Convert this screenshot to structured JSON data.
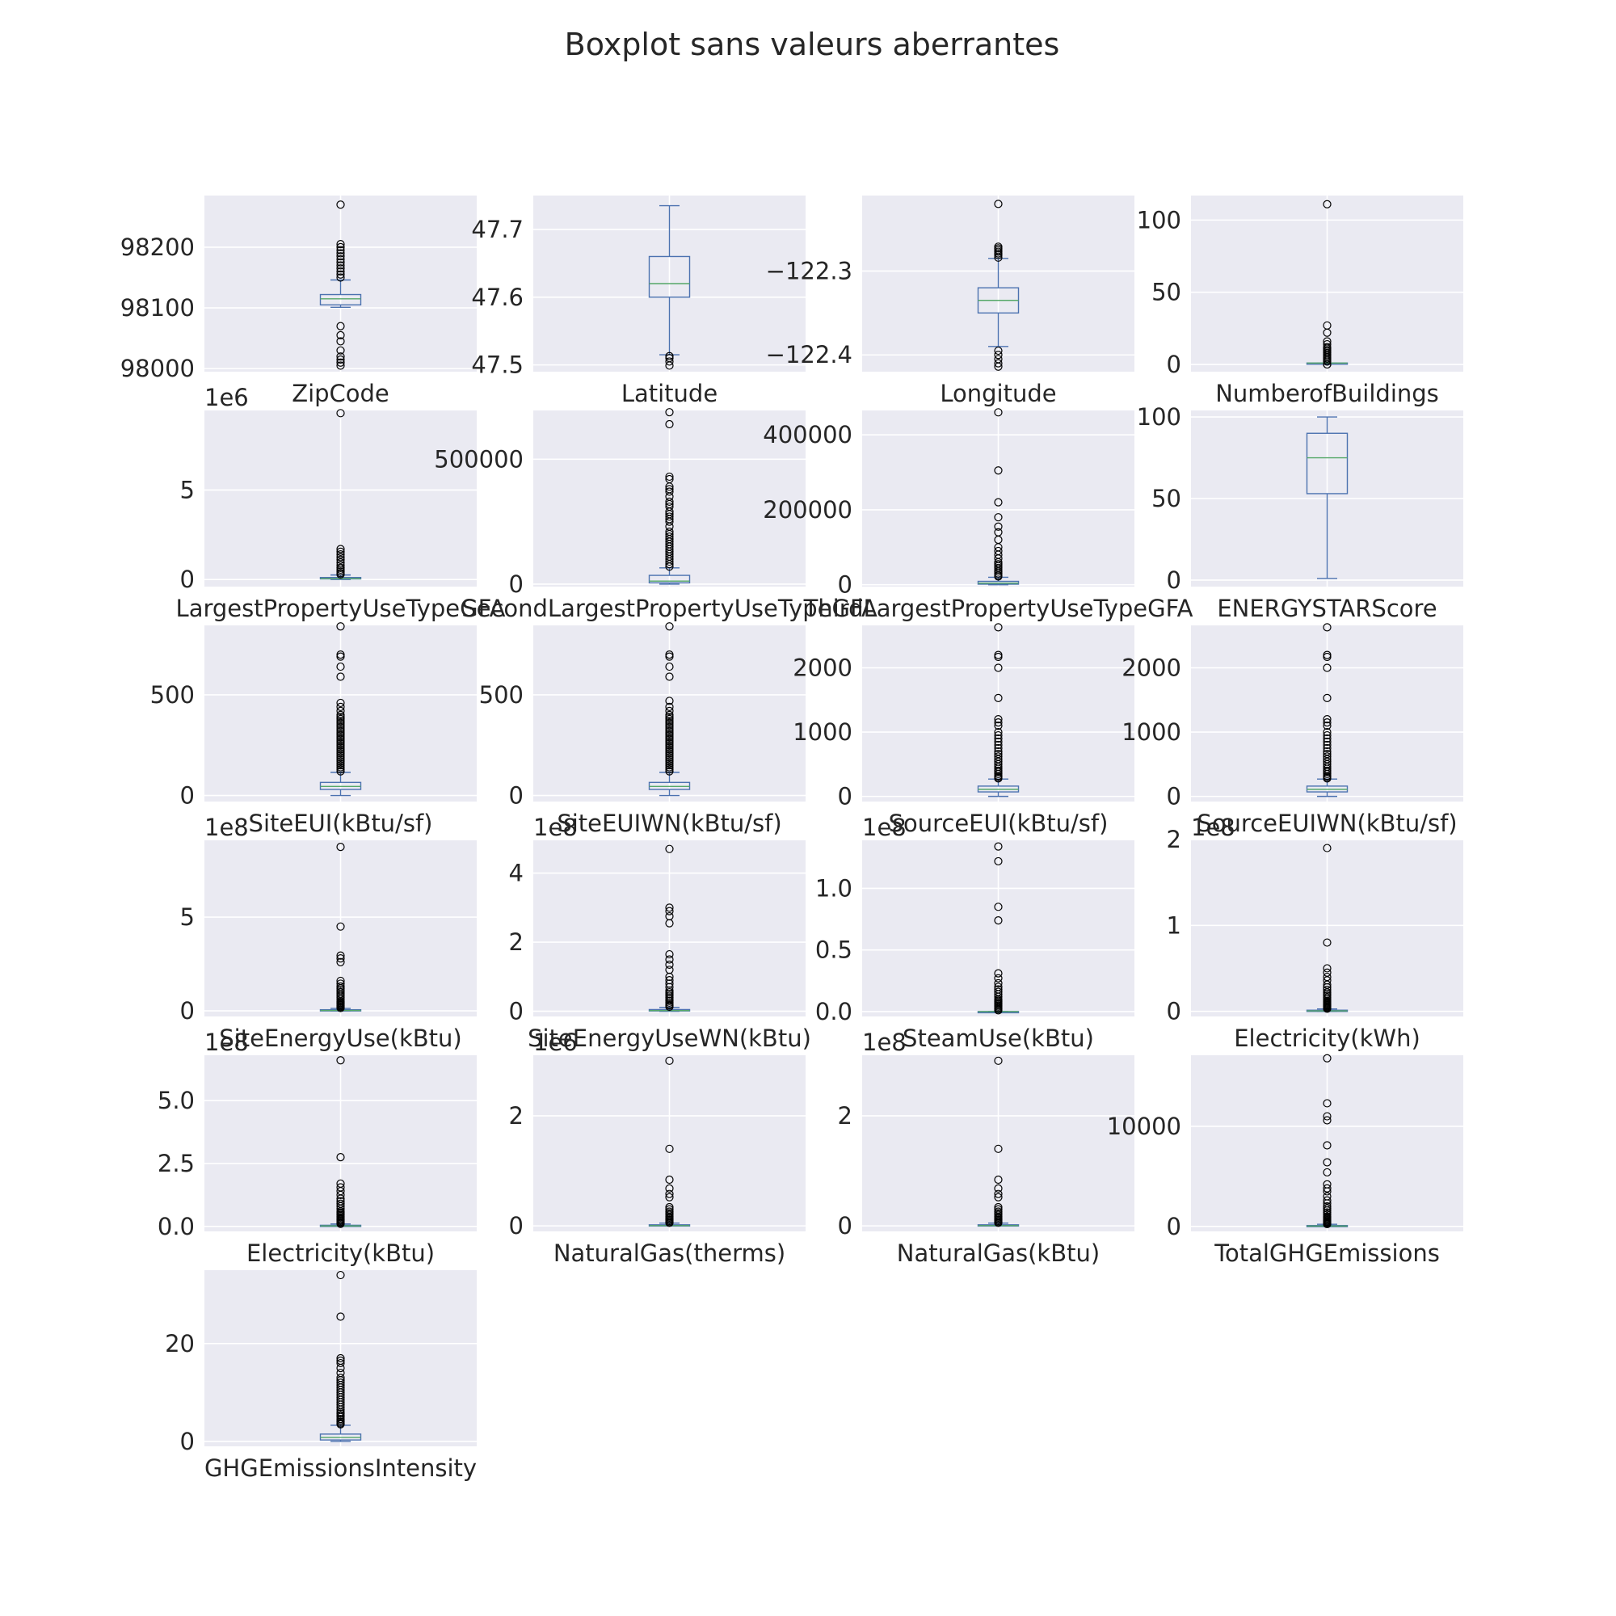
{
  "title": "Boxplot sans valeurs aberrantes",
  "colors": {
    "panel_bg": "#eaeaf2",
    "grid": "#ffffff",
    "box": "#4c72b0",
    "median": "#55a868",
    "flier": "#000000",
    "text": "#262626"
  },
  "chart_data": [
    {
      "type": "boxplot",
      "category": "ZipCode",
      "ylim": [
        97995,
        98285
      ],
      "yticks": [
        98000,
        98100,
        98200
      ],
      "tick_labels": [
        "98000",
        "98100",
        "98200"
      ],
      "offset": "",
      "stats": {
        "whislo": 98101,
        "q1": 98105,
        "median": 98115,
        "q3": 98122,
        "whishi": 98146
      },
      "fliers": [
        98005,
        98010,
        98015,
        98020,
        98030,
        98045,
        98055,
        98070,
        98150,
        98155,
        98160,
        98165,
        98170,
        98175,
        98180,
        98185,
        98190,
        98195,
        98200,
        98205,
        98270
      ]
    },
    {
      "type": "boxplot",
      "category": "Latitude",
      "ylim": [
        47.49,
        47.75
      ],
      "yticks": [
        47.5,
        47.6,
        47.7
      ],
      "tick_labels": [
        "47.5",
        "47.6",
        "47.7"
      ],
      "offset": "",
      "stats": {
        "whislo": 47.515,
        "q1": 47.6,
        "median": 47.62,
        "q3": 47.66,
        "whishi": 47.735
      },
      "fliers": [
        47.499,
        47.505,
        47.51,
        47.513
      ]
    },
    {
      "type": "boxplot",
      "category": "Longitude",
      "ylim": [
        -122.42,
        -122.21
      ],
      "yticks": [
        -122.4,
        -122.3
      ],
      "tick_labels": [
        "−122.4",
        "−122.3"
      ],
      "offset": "",
      "stats": {
        "whislo": -122.39,
        "q1": -122.35,
        "median": -122.335,
        "q3": -122.32,
        "whishi": -122.285
      },
      "fliers": [
        -122.414,
        -122.41,
        -122.405,
        -122.4,
        -122.395,
        -122.284,
        -122.281,
        -122.279,
        -122.277,
        -122.275,
        -122.273,
        -122.271,
        -122.22
      ]
    },
    {
      "type": "boxplot",
      "category": "NumberofBuildings",
      "ylim": [
        -5,
        117
      ],
      "yticks": [
        0,
        50,
        100
      ],
      "tick_labels": [
        "0",
        "50",
        "100"
      ],
      "offset": "",
      "stats": {
        "whislo": 1,
        "q1": 1,
        "median": 1,
        "q3": 1,
        "whishi": 1
      },
      "fliers": [
        0,
        0,
        2,
        3,
        4,
        5,
        6,
        7,
        8,
        9,
        10,
        11,
        12,
        14,
        16,
        22,
        27,
        111
      ]
    },
    {
      "type": "boxplot",
      "category": "LargestPropertyUseTypeGFA",
      "ylim": [
        -0.4,
        9.45
      ],
      "yticks": [
        0,
        5
      ],
      "tick_labels": [
        "0",
        "5"
      ],
      "offset": "1e6",
      "stats": {
        "whislo": 0.0,
        "q1": 0.03,
        "median": 0.05,
        "q3": 0.11,
        "whishi": 0.25
      },
      "fliers": [
        0.28,
        0.35,
        0.45,
        0.55,
        0.65,
        0.8,
        0.95,
        1.1,
        1.25,
        1.4,
        1.55,
        1.7,
        9.3
      ]
    },
    {
      "type": "boxplot",
      "category": "SecondLargestPropertyUseTypeGFA",
      "ylim": [
        -10000,
        695000
      ],
      "yticks": [
        0,
        500000
      ],
      "tick_labels": [
        "0",
        "500000"
      ],
      "offset": "",
      "stats": {
        "whislo": 0,
        "q1": 5000,
        "median": 12000,
        "q3": 35000,
        "whishi": 65000
      },
      "fliers": [
        70000,
        80000,
        90000,
        100000,
        110000,
        120000,
        130000,
        140000,
        150000,
        160000,
        170000,
        180000,
        190000,
        200000,
        210000,
        230000,
        250000,
        260000,
        270000,
        280000,
        290000,
        310000,
        320000,
        330000,
        350000,
        370000,
        380000,
        390000,
        420000,
        430000,
        640000,
        688000
      ]
    },
    {
      "type": "boxplot",
      "category": "ThirdLargestPropertyUseTypeGFA",
      "ylim": [
        -5000,
        465000
      ],
      "yticks": [
        0,
        200000,
        400000
      ],
      "tick_labels": [
        "0",
        "200000",
        "400000"
      ],
      "offset": "",
      "stats": {
        "whislo": 0,
        "q1": 1500,
        "median": 4000,
        "q3": 9000,
        "whishi": 20000
      },
      "fliers": [
        22000,
        25000,
        30000,
        35000,
        40000,
        45000,
        50000,
        55000,
        60000,
        70000,
        80000,
        90000,
        100000,
        120000,
        140000,
        155000,
        180000,
        220000,
        305000,
        460000
      ]
    },
    {
      "type": "boxplot",
      "category": "ENERGYSTARScore",
      "ylim": [
        -4,
        104
      ],
      "yticks": [
        0,
        50,
        100
      ],
      "tick_labels": [
        "0",
        "50",
        "100"
      ],
      "offset": "",
      "stats": {
        "whislo": 1,
        "q1": 53,
        "median": 75,
        "q3": 90,
        "whishi": 100
      },
      "fliers": []
    },
    {
      "type": "boxplot",
      "category": "SiteEUI(kBtu/sf)",
      "ylim": [
        -30,
        845
      ],
      "yticks": [
        0,
        500
      ],
      "tick_labels": [
        "0",
        "500"
      ],
      "offset": "",
      "stats": {
        "whislo": 0,
        "q1": 30,
        "median": 45,
        "q3": 65,
        "whishi": 115
      },
      "fliers": [
        120,
        130,
        140,
        150,
        160,
        170,
        180,
        190,
        200,
        210,
        220,
        230,
        240,
        250,
        260,
        270,
        280,
        290,
        300,
        310,
        320,
        330,
        340,
        350,
        360,
        370,
        380,
        390,
        400,
        420,
        440,
        460,
        590,
        640,
        690,
        700,
        840
      ]
    },
    {
      "type": "boxplot",
      "category": "SiteEUIWN(kBtu/sf)",
      "ylim": [
        -30,
        845
      ],
      "yticks": [
        0,
        500
      ],
      "tick_labels": [
        "0",
        "500"
      ],
      "offset": "",
      "stats": {
        "whislo": 0,
        "q1": 30,
        "median": 45,
        "q3": 65,
        "whishi": 115
      },
      "fliers": [
        120,
        130,
        140,
        150,
        160,
        170,
        180,
        190,
        200,
        210,
        220,
        230,
        240,
        250,
        260,
        270,
        280,
        290,
        300,
        310,
        320,
        330,
        340,
        350,
        360,
        370,
        380,
        390,
        400,
        420,
        440,
        470,
        590,
        640,
        690,
        700,
        840
      ]
    },
    {
      "type": "boxplot",
      "category": "SourceEUI(kBtu/sf)",
      "ylim": [
        -80,
        2660
      ],
      "yticks": [
        0,
        1000,
        2000
      ],
      "tick_labels": [
        "0",
        "1000",
        "2000"
      ],
      "offset": "",
      "stats": {
        "whislo": 0,
        "q1": 70,
        "median": 110,
        "q3": 160,
        "whishi": 270
      },
      "fliers": [
        280,
        300,
        320,
        350,
        380,
        400,
        430,
        460,
        500,
        540,
        580,
        620,
        660,
        700,
        750,
        800,
        850,
        900,
        950,
        1000,
        1100,
        1150,
        1200,
        1530,
        2000,
        2170,
        2200,
        2630
      ]
    },
    {
      "type": "boxplot",
      "category": "SourceEUIWN(kBtu/sf)",
      "ylim": [
        -80,
        2660
      ],
      "yticks": [
        0,
        1000,
        2000
      ],
      "tick_labels": [
        "0",
        "1000",
        "2000"
      ],
      "offset": "",
      "stats": {
        "whislo": 0,
        "q1": 70,
        "median": 110,
        "q3": 160,
        "whishi": 270
      },
      "fliers": [
        280,
        300,
        320,
        350,
        380,
        400,
        430,
        460,
        500,
        540,
        580,
        620,
        660,
        700,
        750,
        800,
        850,
        900,
        950,
        1000,
        1100,
        1150,
        1200,
        1530,
        2000,
        2170,
        2200,
        2630
      ]
    },
    {
      "type": "boxplot",
      "category": "SiteEnergyUse(kBtu)",
      "ylim": [
        -0.3,
        9.1
      ],
      "yticks": [
        0,
        5
      ],
      "tick_labels": [
        "0",
        "5"
      ],
      "offset": "1e8",
      "stats": {
        "whislo": 0,
        "q1": 0.01,
        "median": 0.02,
        "q3": 0.06,
        "whishi": 0.13
      },
      "fliers": [
        0.15,
        0.2,
        0.25,
        0.3,
        0.35,
        0.4,
        0.45,
        0.5,
        0.6,
        0.7,
        0.8,
        0.9,
        1.0,
        1.1,
        1.2,
        1.3,
        1.45,
        1.6,
        2.6,
        2.8,
        2.95,
        4.5,
        8.75
      ]
    },
    {
      "type": "boxplot",
      "category": "SiteEnergyUseWN(kBtu)",
      "ylim": [
        -0.15,
        4.95
      ],
      "yticks": [
        0,
        2,
        4
      ],
      "tick_labels": [
        "0",
        "2",
        "4"
      ],
      "offset": "1e8",
      "stats": {
        "whislo": 0,
        "q1": 0.01,
        "median": 0.02,
        "q3": 0.05,
        "whishi": 0.11
      },
      "fliers": [
        0.13,
        0.17,
        0.2,
        0.25,
        0.3,
        0.35,
        0.4,
        0.45,
        0.5,
        0.55,
        0.6,
        0.7,
        0.8,
        0.9,
        1.0,
        1.2,
        1.35,
        1.5,
        1.65,
        2.55,
        2.75,
        2.9,
        3.0,
        4.7
      ]
    },
    {
      "type": "boxplot",
      "category": "SteamUse(kBtu)",
      "ylim": [
        -0.04,
        1.39
      ],
      "yticks": [
        0.0,
        0.5,
        1.0
      ],
      "tick_labels": [
        "0.0",
        "0.5",
        "1.0"
      ],
      "offset": "1e8",
      "stats": {
        "whislo": 0,
        "q1": 0,
        "median": 0,
        "q3": 0,
        "whishi": 0
      },
      "fliers": [
        0.01,
        0.02,
        0.03,
        0.04,
        0.05,
        0.06,
        0.07,
        0.08,
        0.09,
        0.1,
        0.12,
        0.14,
        0.16,
        0.18,
        0.2,
        0.23,
        0.27,
        0.31,
        0.74,
        0.85,
        1.22,
        1.34
      ]
    },
    {
      "type": "boxplot",
      "category": "Electricity(kWh)",
      "ylim": [
        -0.06,
        1.99
      ],
      "yticks": [
        0,
        1,
        2
      ],
      "tick_labels": [
        "0",
        "1",
        "2"
      ],
      "offset": "1e8",
      "stats": {
        "whislo": 0,
        "q1": 0.002,
        "median": 0.005,
        "q3": 0.013,
        "whishi": 0.028
      },
      "fliers": [
        0.03,
        0.04,
        0.05,
        0.06,
        0.07,
        0.08,
        0.09,
        0.1,
        0.11,
        0.12,
        0.14,
        0.16,
        0.18,
        0.2,
        0.22,
        0.25,
        0.28,
        0.31,
        0.36,
        0.4,
        0.45,
        0.5,
        0.8,
        1.9
      ]
    },
    {
      "type": "boxplot",
      "category": "Electricity(kBtu)",
      "ylim": [
        -0.2,
        6.8
      ],
      "yticks": [
        0.0,
        2.5,
        5.0
      ],
      "tick_labels": [
        "0.0",
        "2.5",
        "5.0"
      ],
      "offset": "1e8",
      "stats": {
        "whislo": 0,
        "q1": 0.007,
        "median": 0.017,
        "q3": 0.044,
        "whishi": 0.095
      },
      "fliers": [
        0.1,
        0.14,
        0.18,
        0.22,
        0.26,
        0.3,
        0.35,
        0.4,
        0.45,
        0.5,
        0.55,
        0.6,
        0.7,
        0.8,
        0.9,
        1.0,
        1.1,
        1.25,
        1.4,
        1.55,
        1.7,
        2.75,
        6.6
      ]
    },
    {
      "type": "boxplot",
      "category": "NaturalGas(therms)",
      "ylim": [
        -0.1,
        3.1
      ],
      "yticks": [
        0,
        2
      ],
      "tick_labels": [
        "0",
        "2"
      ],
      "offset": "1e6",
      "stats": {
        "whislo": 0,
        "q1": 0,
        "median": 0.005,
        "q3": 0.02,
        "whishi": 0.05
      },
      "fliers": [
        0.055,
        0.07,
        0.09,
        0.11,
        0.13,
        0.15,
        0.17,
        0.2,
        0.23,
        0.26,
        0.3,
        0.34,
        0.52,
        0.58,
        0.68,
        0.84,
        1.4,
        3.0
      ]
    },
    {
      "type": "boxplot",
      "category": "NaturalGas(kBtu)",
      "ylim": [
        -0.1,
        3.1
      ],
      "yticks": [
        0,
        2
      ],
      "tick_labels": [
        "0",
        "2"
      ],
      "offset": "1e8",
      "stats": {
        "whislo": 0,
        "q1": 0,
        "median": 0.005,
        "q3": 0.02,
        "whishi": 0.05
      },
      "fliers": [
        0.055,
        0.07,
        0.09,
        0.11,
        0.13,
        0.15,
        0.17,
        0.2,
        0.23,
        0.26,
        0.3,
        0.34,
        0.52,
        0.58,
        0.68,
        0.84,
        1.4,
        3.0
      ]
    },
    {
      "type": "boxplot",
      "category": "TotalGHGEmissions",
      "ylim": [
        -500,
        17100
      ],
      "yticks": [
        0,
        10000
      ],
      "tick_labels": [
        "0",
        "10000"
      ],
      "offset": "",
      "stats": {
        "whislo": 0,
        "q1": 10,
        "median": 35,
        "q3": 90,
        "whishi": 210
      },
      "fliers": [
        230,
        280,
        350,
        420,
        500,
        600,
        700,
        800,
        900,
        1000,
        1200,
        1400,
        1600,
        1800,
        2000,
        2300,
        2600,
        3000,
        3500,
        3800,
        4200,
        5400,
        6400,
        8100,
        10600,
        11000,
        12300,
        16800
      ]
    },
    {
      "type": "boxplot",
      "category": "GHGEmissionsIntensity",
      "ylim": [
        -1,
        35
      ],
      "yticks": [
        0,
        20
      ],
      "tick_labels": [
        "0",
        "20"
      ],
      "offset": "",
      "stats": {
        "whislo": 0,
        "q1": 0.3,
        "median": 0.8,
        "q3": 1.5,
        "whishi": 3.3
      },
      "fliers": [
        3.5,
        3.7,
        4,
        4.3,
        4.6,
        5,
        5.3,
        5.7,
        6,
        6.5,
        7,
        7.5,
        8,
        8.5,
        9,
        9.5,
        10,
        10.5,
        11,
        11.5,
        12,
        12.5,
        13,
        14,
        15,
        16,
        16.5,
        17,
        25.5,
        34
      ]
    }
  ]
}
